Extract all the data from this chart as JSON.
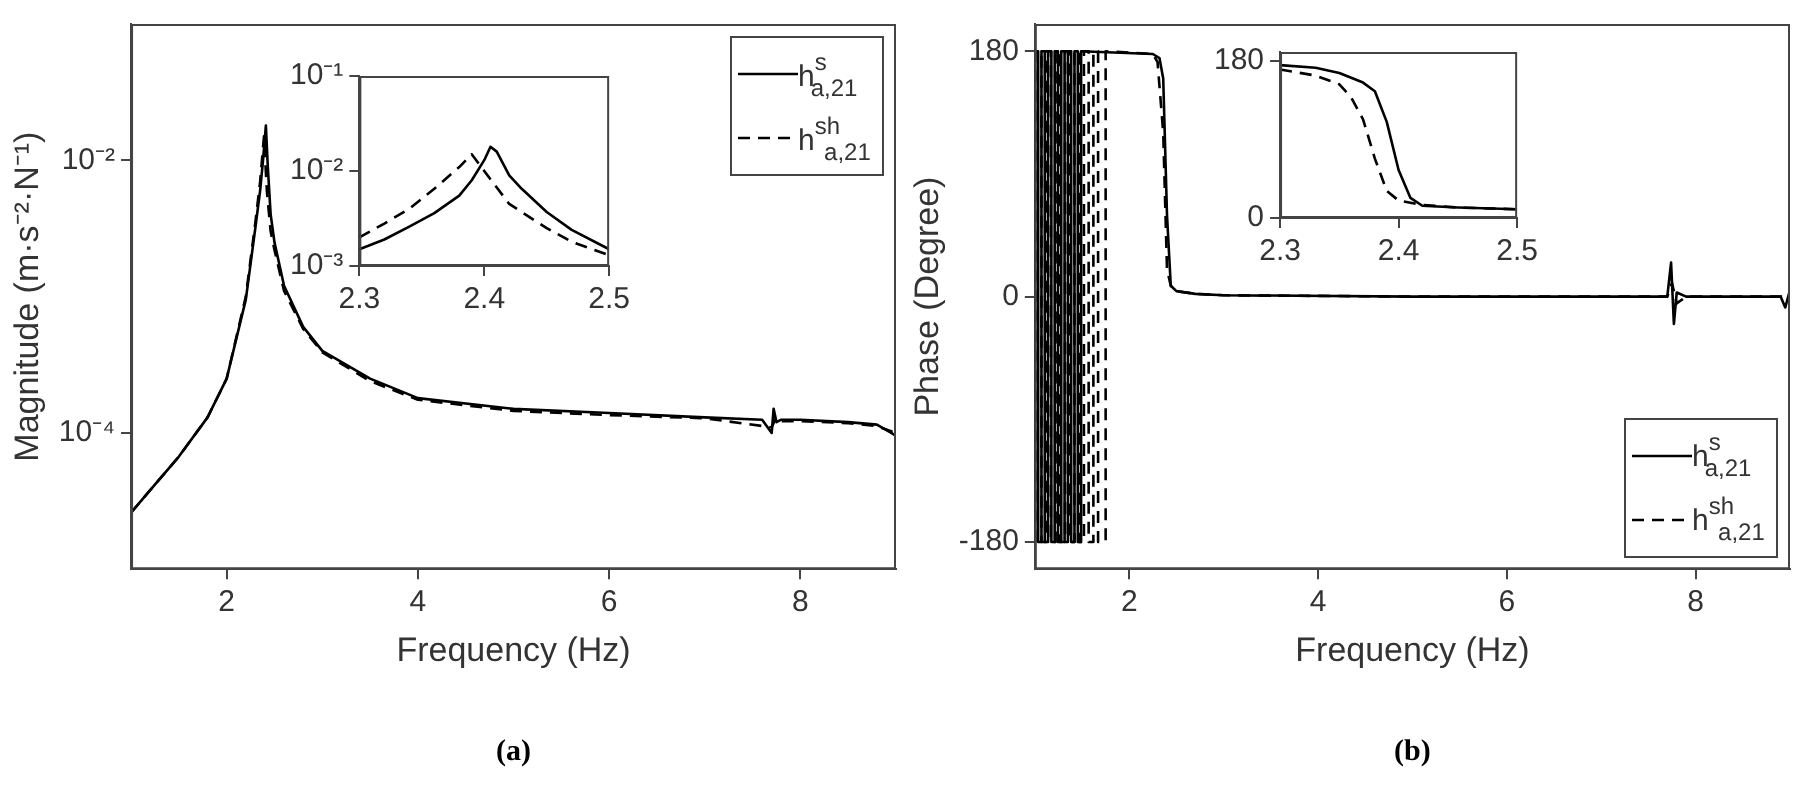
{
  "chart_data": [
    {
      "type": "line",
      "xlabel": "Frequency (Hz)",
      "ylabel": "Magnitude (m·s⁻²·N⁻¹)",
      "xlim": [
        1,
        9
      ],
      "xticks": [
        2,
        4,
        6,
        8
      ],
      "ylim": [
        1e-05,
        0.1
      ],
      "yticks": [
        {
          "value": 0.01,
          "label": "10⁻²"
        },
        {
          "value": 0.0001,
          "label": "10⁻⁴"
        }
      ],
      "log": true,
      "legend": "top right",
      "annotations": [
        "(a)"
      ],
      "series": [
        {
          "name": "h$^{s}$$_{a,21}$",
          "color": "#000000",
          "line_style": "solid",
          "x": [
            1,
            1.2,
            1.5,
            1.8,
            2,
            2.2,
            2.3,
            2.35,
            2.38,
            2.41,
            2.43,
            2.46,
            2.5,
            2.6,
            2.8,
            3,
            3.5,
            4,
            5,
            6,
            7,
            7.6,
            7.7,
            7.72,
            7.75,
            7.8,
            8,
            8.5,
            8.8,
            8.95,
            9
          ],
          "values": [
            2.6e-05,
            3.8e-05,
            6.7e-05,
            0.00013,
            0.00025,
            0.00095,
            0.0032,
            0.006,
            0.01,
            0.018,
            0.009,
            0.004,
            0.0025,
            0.0012,
            0.0006,
            0.0004,
            0.00025,
            0.00018,
            0.00015,
            0.00014,
            0.00013,
            0.000125,
            0.0001,
            0.00015,
            0.00012,
            0.000125,
            0.000125,
            0.00012,
            0.000115,
            0.0001,
            9.5e-05
          ]
        },
        {
          "name": "h$^{sh}$$_{a,21}$",
          "color": "#000000",
          "line_style": "dashed",
          "x": [
            1,
            1.2,
            1.5,
            1.8,
            2,
            2.2,
            2.3,
            2.35,
            2.39,
            2.42,
            2.46,
            2.5,
            2.6,
            2.8,
            3,
            3.5,
            4,
            5,
            6,
            7,
            7.7,
            7.75,
            7.8,
            8,
            8.5,
            8.8,
            9
          ],
          "values": [
            2.6e-05,
            3.8e-05,
            6.7e-05,
            0.00013,
            0.00025,
            0.001,
            0.0035,
            0.007,
            0.015,
            0.006,
            0.003,
            0.0022,
            0.0011,
            0.00058,
            0.00039,
            0.00024,
            0.000175,
            0.000145,
            0.000135,
            0.000128,
            0.00011,
            0.00013,
            0.000122,
            0.000122,
            0.000118,
            0.000112,
            0.0001
          ]
        }
      ]
    },
    {
      "type": "line",
      "xlim": [
        2.3,
        2.5
      ],
      "xticks": [
        2.3,
        2.4,
        2.5
      ],
      "ylim": [
        0.001,
        0.1
      ],
      "yticks": [
        {
          "value": 0.1,
          "label": "10⁻¹"
        },
        {
          "value": 0.01,
          "label": "10⁻²"
        },
        {
          "value": 0.001,
          "label": "10⁻³"
        }
      ],
      "log": true,
      "series": [
        {
          "color": "#000000",
          "line_style": "solid",
          "x": [
            2.3,
            2.32,
            2.34,
            2.36,
            2.38,
            2.39,
            2.4,
            2.405,
            2.41,
            2.42,
            2.43,
            2.45,
            2.47,
            2.5
          ],
          "values": [
            0.0015,
            0.0019,
            0.0026,
            0.0036,
            0.0055,
            0.008,
            0.013,
            0.018,
            0.016,
            0.009,
            0.0065,
            0.0037,
            0.0024,
            0.0015
          ]
        },
        {
          "color": "#000000",
          "line_style": "dashed",
          "x": [
            2.3,
            2.32,
            2.34,
            2.36,
            2.38,
            2.39,
            2.4,
            2.42,
            2.45,
            2.47,
            2.5
          ],
          "values": [
            0.002,
            0.0028,
            0.004,
            0.0065,
            0.011,
            0.015,
            0.01,
            0.0045,
            0.0025,
            0.0018,
            0.0013
          ]
        }
      ]
    },
    {
      "type": "line",
      "xlabel": "Frequency (Hz)",
      "ylabel": "Phase (Degree)",
      "xlim": [
        1,
        9
      ],
      "xticks": [
        2,
        4,
        6,
        8
      ],
      "ylim": [
        -200,
        200
      ],
      "yticks": [
        -180,
        0,
        180
      ],
      "legend": "bottom right",
      "annotations": [
        "(b)"
      ],
      "series": [
        {
          "name": "h$^{s}$$_{a,21}$",
          "color": "#000000",
          "line_style": "solid",
          "x": [
            1,
            1,
            1.035,
            1.035,
            1.07,
            1.07,
            1.105,
            1.105,
            1.14,
            1.14,
            1.175,
            1.175,
            1.21,
            1.21,
            1.245,
            1.245,
            1.28,
            1.28,
            1.315,
            1.315,
            1.35,
            1.35,
            1.385,
            1.385,
            1.42,
            1.42,
            1.455,
            1.455,
            1.49,
            1.49,
            2.25,
            2.32,
            2.36,
            2.4,
            2.44,
            2.5,
            2.7,
            3,
            5,
            7.7,
            7.74,
            7.77,
            7.8,
            7.9,
            8.9,
            8.95,
            9
          ],
          "values": [
            -180,
            180,
            180,
            -180,
            -180,
            180,
            180,
            -180,
            -180,
            180,
            180,
            -180,
            -180,
            180,
            180,
            -180,
            -180,
            180,
            180,
            -180,
            -180,
            180,
            180,
            -180,
            -180,
            180,
            180,
            -180,
            -180,
            180,
            178,
            175,
            160,
            60,
            8,
            4,
            2,
            1,
            0,
            0,
            25,
            -20,
            3,
            0,
            0,
            -8,
            5
          ]
        },
        {
          "name": "h$^{sh}$$_{a,21}$",
          "color": "#000000",
          "line_style": "dashed",
          "x": [
            1.02,
            1.02,
            1.07,
            1.07,
            1.12,
            1.12,
            1.17,
            1.17,
            1.22,
            1.22,
            1.27,
            1.27,
            1.32,
            1.32,
            1.37,
            1.37,
            1.42,
            1.42,
            1.47,
            1.47,
            1.52,
            1.52,
            1.57,
            1.57,
            1.62,
            1.62,
            1.67,
            1.67,
            1.75,
            1.75,
            2.25,
            2.3,
            2.36,
            2.4,
            2.44,
            2.5,
            2.7,
            3,
            5,
            7.7,
            7.75,
            7.8,
            7.9,
            9
          ],
          "values": [
            -180,
            180,
            180,
            -180,
            -180,
            180,
            180,
            -180,
            -180,
            180,
            180,
            -180,
            -180,
            180,
            180,
            -180,
            -180,
            180,
            180,
            -180,
            -180,
            180,
            180,
            -180,
            -180,
            180,
            180,
            -180,
            -180,
            180,
            178,
            172,
            120,
            20,
            8,
            4,
            2,
            1,
            0,
            0,
            10,
            -5,
            0,
            0
          ]
        }
      ]
    },
    {
      "type": "line",
      "xlim": [
        2.3,
        2.5
      ],
      "xticks": [
        2.3,
        2.4,
        2.5
      ],
      "ylim": [
        0,
        190
      ],
      "yticks": [
        0,
        180
      ],
      "series": [
        {
          "color": "#000000",
          "line_style": "solid",
          "x": [
            2.3,
            2.33,
            2.35,
            2.37,
            2.38,
            2.39,
            2.4,
            2.41,
            2.42,
            2.45,
            2.5
          ],
          "values": [
            175,
            172,
            166,
            155,
            145,
            110,
            55,
            23,
            14,
            12,
            10
          ]
        },
        {
          "color": "#000000",
          "line_style": "dashed",
          "x": [
            2.3,
            2.33,
            2.35,
            2.36,
            2.37,
            2.38,
            2.39,
            2.4,
            2.42,
            2.45,
            2.5
          ],
          "values": [
            170,
            163,
            153,
            138,
            113,
            68,
            31,
            20,
            15,
            12,
            10
          ]
        }
      ]
    }
  ]
}
